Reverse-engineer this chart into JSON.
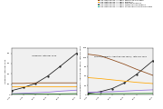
{
  "years": [
    1990,
    1995,
    2000,
    2005,
    2010,
    2017
  ],
  "legend_labels": [
    "Iran, Both sexes, All ages, Alzheimer's disease and other dementias",
    "Iran, Both sexes, All ages, Parkinson's disease",
    "Iran, Both sexes, All ages, Epilepsy",
    "Iran, Both sexes, All ages, Multiple sclerosis",
    "Iran, Both sexes, All ages, Motor neuron disease",
    "Iran, Both sexes, All ages, Other neurological disorders"
  ],
  "legend_colors": [
    "#1a1a1a",
    "#8B4513",
    "#FFA500",
    "#9370DB",
    "#228B22",
    "#20B2AA"
  ],
  "incidence_data": [
    [
      8,
      14,
      22,
      36,
      54,
      80
    ],
    [
      22,
      22,
      23,
      23,
      23,
      23
    ],
    [
      17,
      17,
      17,
      17,
      17,
      17
    ],
    [
      2,
      3,
      4,
      5,
      7,
      9
    ],
    [
      1,
      1.2,
      1.4,
      1.6,
      1.8,
      2.2
    ],
    [
      0.5,
      0.5,
      0.5,
      0.5,
      0.5,
      0.5
    ]
  ],
  "daly_data": [
    [
      5,
      10,
      20,
      38,
      65,
      110
    ],
    [
      130,
      125,
      112,
      98,
      82,
      62
    ],
    [
      55,
      52,
      48,
      44,
      40,
      36
    ],
    [
      8,
      9,
      10,
      12,
      14,
      16
    ],
    [
      3,
      3.2,
      3.5,
      3.8,
      4.0,
      4.5
    ],
    [
      2,
      2,
      2,
      2,
      2,
      2
    ]
  ],
  "incidence_ylabel": "Incidence, rate per 100k",
  "daly_ylabel": "DALYs (Disability Adjusted Life Years), rate per 100k",
  "ylim_incidence": [
    0,
    90
  ],
  "ylim_daly": [
    0,
    150
  ],
  "yticks_incidence": [
    0,
    20,
    40,
    60,
    80
  ],
  "yticks_daly": [
    0,
    30,
    60,
    90,
    120,
    150
  ],
  "xticks": [
    1990,
    1995,
    2000,
    2005,
    2010,
    2017
  ],
  "bg_color": "#f0f0f0"
}
